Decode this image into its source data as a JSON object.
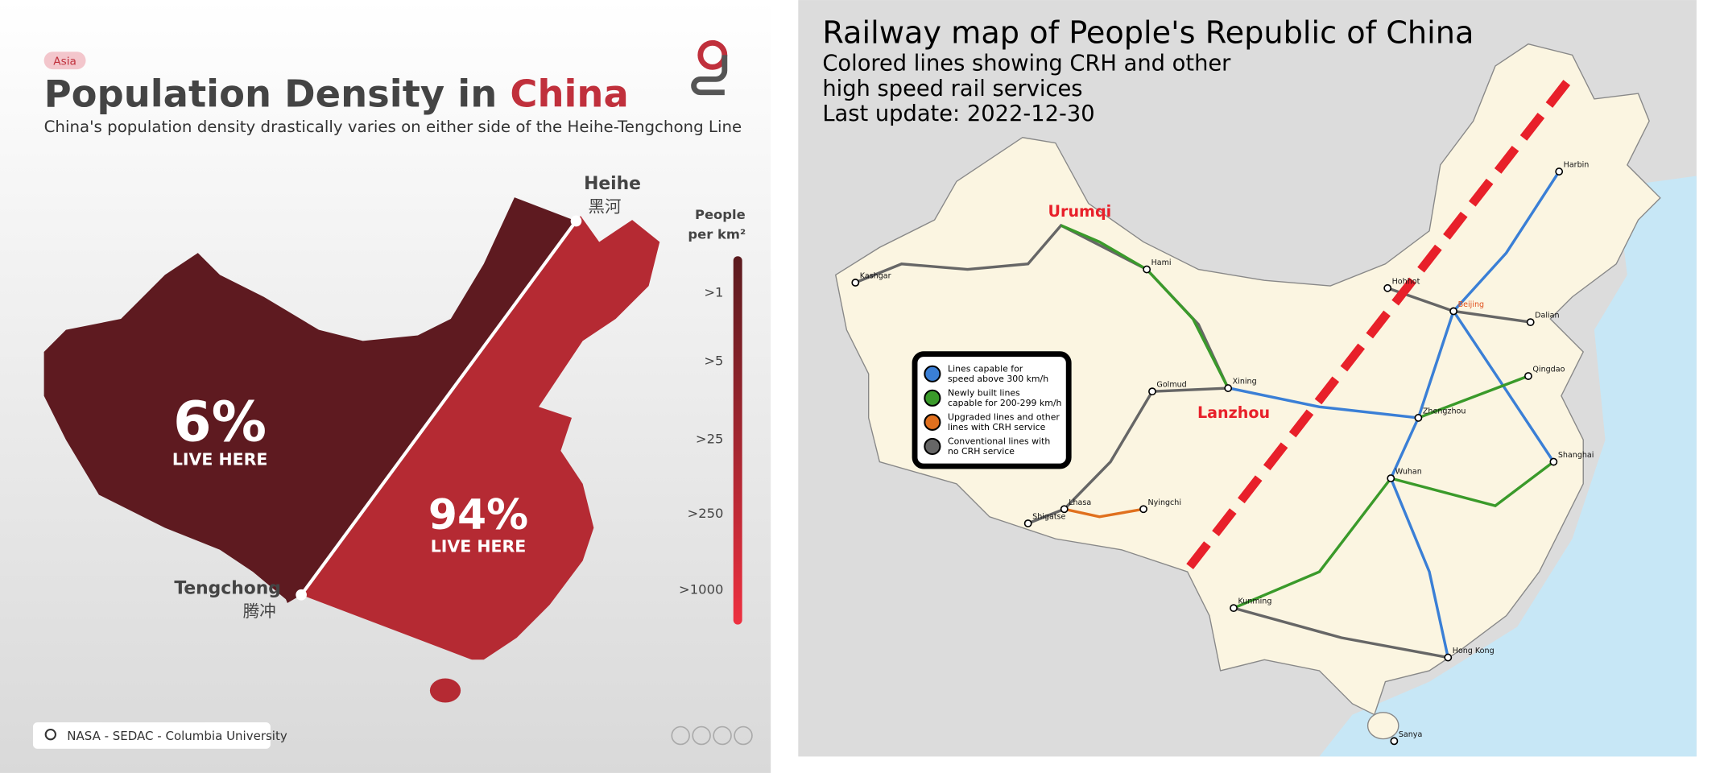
{
  "left": {
    "tag": "Asia",
    "title_part1": "Population Density in ",
    "title_part2": "China",
    "subtitle": "China's population density drastically varies on either side of the Heihe-Tengchong Line",
    "heihe": {
      "name": "Heihe",
      "chinese": "黑河"
    },
    "tengchong": {
      "name": "Tengchong",
      "chinese": "腾冲"
    },
    "west": {
      "share": "6%",
      "caption": "LIVE HERE"
    },
    "east": {
      "share": "94%",
      "caption": "LIVE HERE"
    },
    "legend": {
      "title_lines": [
        "People",
        "per km²"
      ],
      "levels": [
        ">1",
        ">5",
        ">25",
        ">250",
        ">1000"
      ]
    },
    "source": "NASA - SEDAC - Columbia University"
  },
  "right": {
    "title": "Railway map of People's Republic of China",
    "subtitle_lines": [
      "Colored lines showing CRH and other",
      "high speed rail services",
      "Last update: 2022-12-30"
    ],
    "highlights": [
      "Urumqi",
      "Lanzhou"
    ],
    "legend": [
      {
        "lines": [
          "Lines capable for",
          "speed above 300 km/h"
        ]
      },
      {
        "lines": [
          "Newly built lines",
          "capable for 200-299 km/h"
        ]
      },
      {
        "lines": [
          "Upgraded lines and other",
          "lines with CRH service"
        ]
      },
      {
        "lines": [
          "Conventional lines with",
          "no CRH service"
        ]
      }
    ],
    "cities": [
      "Kashgar",
      "Hami",
      "Lhasa",
      "Shigatse",
      "Nyingchi",
      "Golmud",
      "Xining",
      "Hohhot",
      "Beijing",
      "Harbin",
      "Dalian",
      "Qingdao",
      "Zhengzhou",
      "Shanghai",
      "Wuhan",
      "Kunming",
      "Hong Kong",
      "Sanya"
    ]
  }
}
